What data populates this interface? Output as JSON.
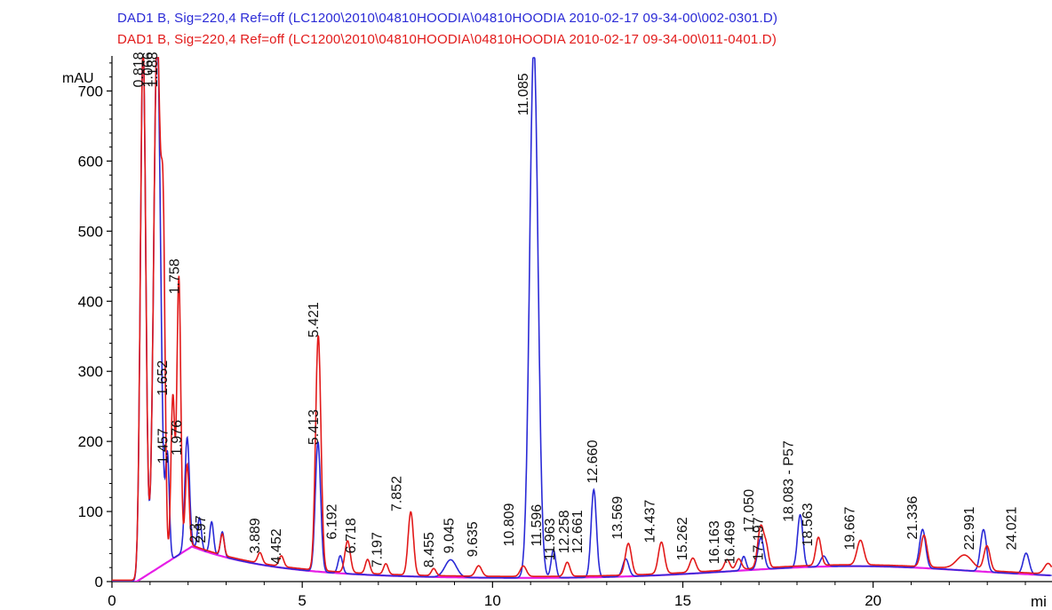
{
  "chart_data": {
    "type": "line",
    "title_lines": [
      {
        "text": "DAD1 B, Sig=220,4 Ref=off (LC1200\\2010\\04810HOODIA\\04810HOODIA 2010-02-17 09-34-00\\002-0301.D)",
        "color": "#2a2ad6"
      },
      {
        "text": "DAD1 B, Sig=220,4 Ref=off (LC1200\\2010\\04810HOODIA\\04810HOODIA 2010-02-17 09-34-00\\011-0401.D)",
        "color": "#e21a1a"
      }
    ],
    "ylabel": "mAU",
    "xlabel": "mi",
    "xlim": [
      0,
      24.7
    ],
    "ylim": [
      0,
      750
    ],
    "x_ticks": [
      0,
      5,
      10,
      15,
      20
    ],
    "y_ticks": [
      0,
      100,
      200,
      300,
      400,
      500,
      600,
      700
    ],
    "series": [
      {
        "color": "#2a2ad6",
        "peaks": [
          {
            "t": 0.818,
            "h": 760,
            "w": 0.07
          },
          {
            "t": 1.188,
            "h": 760,
            "w": 0.09
          },
          {
            "t": 1.457,
            "h": 150,
            "w": 0.05
          },
          {
            "t": 1.976,
            "h": 160,
            "w": 0.06
          },
          {
            "t": 2.3,
            "h": 45,
            "w": 0.05
          },
          {
            "t": 2.62,
            "h": 45,
            "w": 0.05
          },
          {
            "t": 2.9,
            "h": 35,
            "w": 0.05
          },
          {
            "t": 5.413,
            "h": 185,
            "w": 0.07
          },
          {
            "t": 6.0,
            "h": 25,
            "w": 0.06
          },
          {
            "t": 8.9,
            "h": 25,
            "w": 0.15
          },
          {
            "t": 11.085,
            "h": 760,
            "w": 0.11
          },
          {
            "t": 11.6,
            "h": 40,
            "w": 0.06
          },
          {
            "t": 12.66,
            "h": 125,
            "w": 0.07
          },
          {
            "t": 13.5,
            "h": 25,
            "w": 0.08
          },
          {
            "t": 16.6,
            "h": 20,
            "w": 0.06
          },
          {
            "t": 17.05,
            "h": 45,
            "w": 0.08
          },
          {
            "t": 18.083,
            "h": 75,
            "w": 0.07
          },
          {
            "t": 18.7,
            "h": 15,
            "w": 0.08
          },
          {
            "t": 21.3,
            "h": 55,
            "w": 0.08
          },
          {
            "t": 22.9,
            "h": 60,
            "w": 0.08
          },
          {
            "t": 24.021,
            "h": 30,
            "w": 0.08
          }
        ]
      },
      {
        "color": "#e21a1a",
        "peaks": [
          {
            "t": 0.818,
            "h": 760,
            "w": 0.07
          },
          {
            "t": 1.188,
            "h": 760,
            "w": 0.09
          },
          {
            "t": 1.35,
            "h": 380,
            "w": 0.05
          },
          {
            "t": 1.6,
            "h": 230,
            "w": 0.05
          },
          {
            "t": 1.758,
            "h": 395,
            "w": 0.05
          },
          {
            "t": 1.976,
            "h": 120,
            "w": 0.05
          },
          {
            "t": 2.9,
            "h": 30,
            "w": 0.05
          },
          {
            "t": 3.889,
            "h": 15,
            "w": 0.06
          },
          {
            "t": 4.452,
            "h": 15,
            "w": 0.06
          },
          {
            "t": 5.421,
            "h": 335,
            "w": 0.07
          },
          {
            "t": 6.192,
            "h": 45,
            "w": 0.07
          },
          {
            "t": 6.718,
            "h": 20,
            "w": 0.06
          },
          {
            "t": 7.197,
            "h": 15,
            "w": 0.06
          },
          {
            "t": 7.852,
            "h": 90,
            "w": 0.07
          },
          {
            "t": 8.455,
            "h": 10,
            "w": 0.06
          },
          {
            "t": 9.635,
            "h": 15,
            "w": 0.08
          },
          {
            "t": 10.809,
            "h": 15,
            "w": 0.08
          },
          {
            "t": 11.963,
            "h": 20,
            "w": 0.07
          },
          {
            "t": 13.569,
            "h": 45,
            "w": 0.08
          },
          {
            "t": 14.437,
            "h": 45,
            "w": 0.08
          },
          {
            "t": 15.262,
            "h": 20,
            "w": 0.08
          },
          {
            "t": 16.163,
            "h": 15,
            "w": 0.07
          },
          {
            "t": 16.469,
            "h": 15,
            "w": 0.07
          },
          {
            "t": 17.05,
            "h": 60,
            "w": 0.08
          },
          {
            "t": 17.197,
            "h": 25,
            "w": 0.06
          },
          {
            "t": 18.563,
            "h": 40,
            "w": 0.07
          },
          {
            "t": 19.667,
            "h": 35,
            "w": 0.09
          },
          {
            "t": 21.336,
            "h": 45,
            "w": 0.08
          },
          {
            "t": 22.4,
            "h": 20,
            "w": 0.2
          },
          {
            "t": 22.991,
            "h": 35,
            "w": 0.08
          },
          {
            "t": 24.6,
            "h": 15,
            "w": 0.1
          }
        ]
      }
    ],
    "baseline_color": "#e61ee6",
    "peak_labels": [
      {
        "text": "0.818",
        "t": 0.818,
        "y": 705
      },
      {
        "text": "1.188",
        "t": 1.188,
        "y": 705
      },
      {
        "text": "1.066",
        "t": 1.06,
        "y": 705
      },
      {
        "text": "1.457",
        "t": 1.457,
        "y": 168
      },
      {
        "text": "1.652",
        "t": 1.45,
        "y": 265
      },
      {
        "text": "1.758",
        "t": 1.758,
        "y": 410
      },
      {
        "text": "1.976",
        "t": 1.82,
        "y": 180
      },
      {
        "text": "2.3",
        "t": 2.3,
        "y": 55
      },
      {
        "text": "2.97",
        "t": 2.45,
        "y": 55
      },
      {
        "text": "3.889",
        "t": 3.88,
        "y": 40
      },
      {
        "text": "4.452",
        "t": 4.44,
        "y": 25
      },
      {
        "text": "5.421",
        "t": 5.421,
        "y": 348
      },
      {
        "text": "5.413",
        "t": 5.413,
        "y": 195
      },
      {
        "text": "6.192",
        "t": 5.9,
        "y": 60
      },
      {
        "text": "6.718",
        "t": 6.4,
        "y": 40
      },
      {
        "text": "7.197",
        "t": 7.08,
        "y": 20
      },
      {
        "text": "7.852",
        "t": 7.6,
        "y": 100
      },
      {
        "text": "8.455",
        "t": 8.455,
        "y": 20
      },
      {
        "text": "9.045",
        "t": 8.98,
        "y": 40
      },
      {
        "text": "9.635",
        "t": 9.6,
        "y": 35
      },
      {
        "text": "10.809",
        "t": 10.55,
        "y": 50
      },
      {
        "text": "11.085",
        "t": 10.93,
        "y": 665
      },
      {
        "text": "11.596",
        "t": 11.28,
        "y": 50
      },
      {
        "text": "11.963",
        "t": 11.63,
        "y": 30
      },
      {
        "text": "12.258",
        "t": 12.0,
        "y": 40
      },
      {
        "text": "12.661",
        "t": 12.35,
        "y": 40
      },
      {
        "text": "12.660",
        "t": 12.75,
        "y": 140
      },
      {
        "text": "13.569",
        "t": 13.4,
        "y": 60
      },
      {
        "text": "14.437",
        "t": 14.25,
        "y": 55
      },
      {
        "text": "15.262",
        "t": 15.1,
        "y": 30
      },
      {
        "text": "16.163",
        "t": 15.95,
        "y": 25
      },
      {
        "text": "16.469",
        "t": 16.35,
        "y": 25
      },
      {
        "text": "17.050",
        "t": 16.85,
        "y": 70
      },
      {
        "text": "17.197",
        "t": 17.1,
        "y": 30
      },
      {
        "text": "18.083 - P57",
        "t": 17.9,
        "y": 85
      },
      {
        "text": "18.563",
        "t": 18.4,
        "y": 50
      },
      {
        "text": "19.667",
        "t": 19.5,
        "y": 45
      },
      {
        "text": "21.336",
        "t": 21.15,
        "y": 60
      },
      {
        "text": "22.991",
        "t": 22.65,
        "y": 45
      },
      {
        "text": "24.021",
        "t": 23.75,
        "y": 45
      }
    ]
  }
}
